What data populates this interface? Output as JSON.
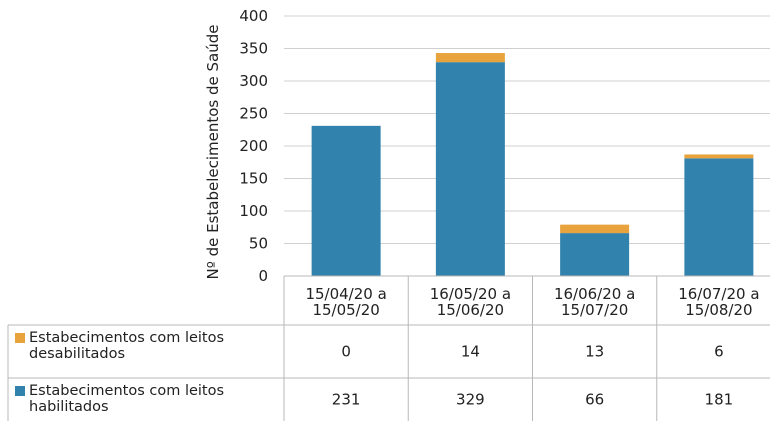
{
  "chart_data": {
    "type": "bar",
    "stacked": true,
    "ylabel": "Nº de Estabelecimentos de Saúde",
    "ylim": [
      0,
      400
    ],
    "yticks": [
      0,
      50,
      100,
      150,
      200,
      250,
      300,
      350,
      400
    ],
    "grid": true,
    "legend": "data-table",
    "categories": [
      [
        "15/04/20 a",
        "15/05/20"
      ],
      [
        "16/05/20 a",
        "15/06/20"
      ],
      [
        "16/06/20 a",
        "15/07/20"
      ],
      [
        "16/07/20 a",
        "15/08/20"
      ]
    ],
    "series": [
      {
        "name": "Estabecimentos com leitos habilitados",
        "label_lines": [
          "Estabecimentos com leitos",
          "habilitados"
        ],
        "color": "#3182ac",
        "values": [
          231,
          329,
          66,
          181
        ]
      },
      {
        "name": "Estabecimentos com leitos desabilitados",
        "label_lines": [
          "Estabecimentos com leitos",
          "desabilitados"
        ],
        "color": "#e8a33d",
        "values": [
          0,
          14,
          13,
          6
        ]
      }
    ]
  }
}
